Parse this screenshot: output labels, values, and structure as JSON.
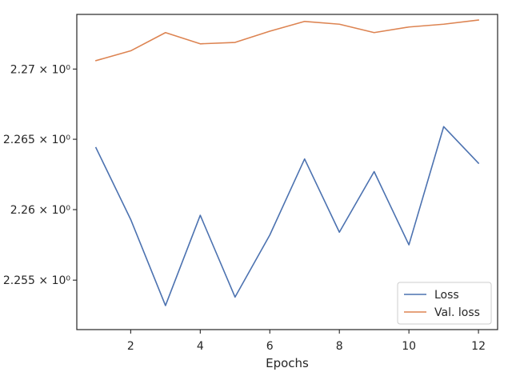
{
  "chart_data": {
    "type": "line",
    "xlabel": "Epochs",
    "ylabel": "",
    "title": "",
    "x": [
      1,
      2,
      3,
      4,
      5,
      6,
      7,
      8,
      9,
      10,
      11,
      12
    ],
    "series": [
      {
        "name": "Loss",
        "color": "#4c72b0",
        "values": [
          2.2644,
          2.2593,
          2.2532,
          2.2596,
          2.2538,
          2.2582,
          2.2636,
          2.2584,
          2.2627,
          2.2575,
          2.2659,
          2.2633
        ]
      },
      {
        "name": "Val. loss",
        "color": "#dd8452",
        "values": [
          2.2706,
          2.2713,
          2.2726,
          2.2718,
          2.2719,
          2.2727,
          2.2734,
          2.2732,
          2.2726,
          2.273,
          2.2732,
          2.2735
        ]
      }
    ],
    "xlim": [
      0.45,
      12.55
    ],
    "ylim": [
      2.2515,
      2.2739
    ],
    "yscale": "log",
    "xticks": [
      2,
      4,
      6,
      8,
      10,
      12
    ],
    "xtick_labels": [
      "2",
      "4",
      "6",
      "8",
      "10",
      "12"
    ],
    "yticks": [
      2.255,
      2.26,
      2.265,
      2.27
    ],
    "ytick_labels": [
      "2.255 × 10⁰",
      "2.26 × 10⁰",
      "2.265 × 10⁰",
      "2.27 × 10⁰"
    ],
    "grid": false,
    "legend_position": "lower-right"
  }
}
